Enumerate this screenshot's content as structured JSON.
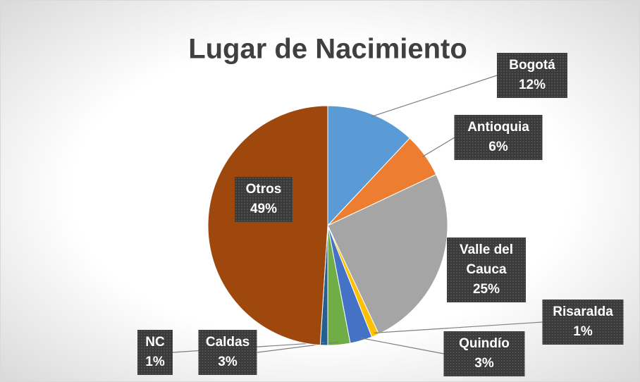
{
  "chart_data": {
    "type": "pie",
    "title": "Lugar de Nacimiento",
    "categories": [
      "Bogotá",
      "Antioquia",
      "Valle del Cauca",
      "Risaralda",
      "Quindío",
      "Caldas",
      "NC",
      "Otros"
    ],
    "values": [
      12,
      6,
      25,
      1,
      3,
      3,
      1,
      49
    ],
    "value_labels": [
      "12%",
      "6%",
      "25%",
      "1%",
      "3%",
      "3%",
      "1%",
      "49%"
    ],
    "colors": [
      "#5b9bd5",
      "#ed7d31",
      "#a5a5a5",
      "#ffc000",
      "#4472c4",
      "#70ad47",
      "#255e91",
      "#9e480e"
    ]
  }
}
